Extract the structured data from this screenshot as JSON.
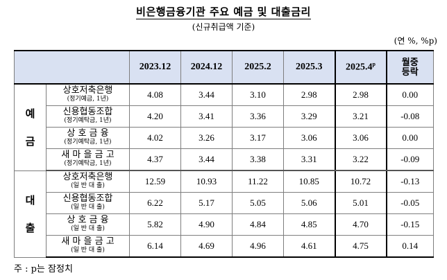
{
  "title": "비은행금융기관 주요 예금 및 대출금리",
  "subtitle": "(신규취급액 기준)",
  "unit": "(연 %, %p)",
  "columns": [
    "2023.12",
    "2024.12",
    "2025.2",
    "2025.3",
    "2025.4",
    "월중 등락"
  ],
  "col5_sup": "p",
  "change_line1": "월중",
  "change_line2": "등락",
  "groups": [
    {
      "label_top": "예",
      "label_bottom": "금",
      "rows": [
        {
          "name": "상호저축은행",
          "sub": "(정기예금, 1년)",
          "values": [
            "4.08",
            "3.44",
            "3.10",
            "2.98",
            "2.98",
            "0.00"
          ]
        },
        {
          "name": "신용협동조합",
          "sub": "(정기예탁금, 1년)",
          "values": [
            "4.20",
            "3.41",
            "3.36",
            "3.29",
            "3.21",
            "-0.08"
          ]
        },
        {
          "name": "상 호 금 융",
          "sub": "(정기예탁금, 1년)",
          "values": [
            "4.02",
            "3.26",
            "3.17",
            "3.06",
            "3.06",
            "0.00"
          ]
        },
        {
          "name": "새 마 을 금 고",
          "sub": "(정기예탁금, 1년)",
          "values": [
            "4.37",
            "3.44",
            "3.38",
            "3.31",
            "3.22",
            "-0.09"
          ]
        }
      ]
    },
    {
      "label_top": "대",
      "label_bottom": "출",
      "rows": [
        {
          "name": "상호저축은행",
          "sub": "(일 반 대 출)",
          "values": [
            "12.59",
            "10.93",
            "11.22",
            "10.85",
            "10.72",
            "-0.13"
          ]
        },
        {
          "name": "신용협동조합",
          "sub": "(일 반 대 출)",
          "values": [
            "6.22",
            "5.17",
            "5.05",
            "5.06",
            "5.01",
            "-0.05"
          ]
        },
        {
          "name": "상 호 금 융",
          "sub": "(일 반 대 출)",
          "values": [
            "5.82",
            "4.90",
            "4.84",
            "4.85",
            "4.70",
            "-0.15"
          ]
        },
        {
          "name": "새 마 을 금 고",
          "sub": "(일 반 대 출)",
          "values": [
            "6.14",
            "4.69",
            "4.96",
            "4.61",
            "4.75",
            "0.14"
          ]
        }
      ]
    }
  ],
  "note": "주 : p는 잠정치"
}
